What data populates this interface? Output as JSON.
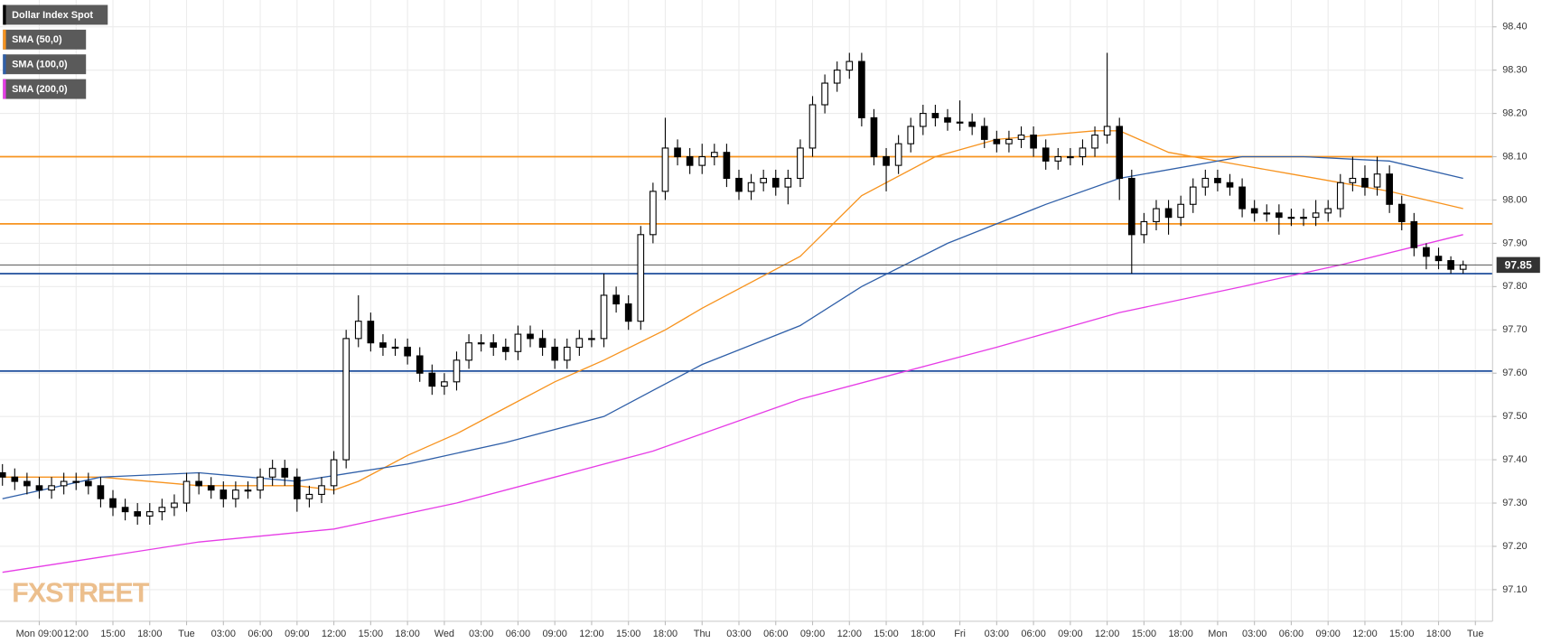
{
  "chart_data": {
    "type": "candlestick",
    "x": [
      6,
      7,
      8,
      9,
      10,
      11,
      12,
      13,
      14,
      15,
      16,
      17,
      18,
      19,
      20,
      21,
      22,
      23,
      24,
      25,
      26,
      27,
      28,
      29,
      30,
      31,
      32,
      33,
      34,
      35,
      36,
      37,
      38,
      39,
      40,
      41,
      42,
      43,
      44,
      45,
      46,
      47,
      48,
      49,
      50,
      51,
      52,
      53,
      54,
      55,
      56,
      57,
      58,
      59,
      60,
      61,
      62,
      63,
      64,
      65,
      66,
      67,
      68,
      69,
      70,
      71,
      72,
      73,
      74,
      75,
      76,
      77,
      78,
      79,
      80,
      81,
      82,
      83,
      84,
      85,
      86,
      87,
      88,
      89,
      90,
      91,
      92,
      93,
      94,
      95,
      96,
      97,
      98,
      99,
      100,
      101,
      102,
      103,
      104,
      105,
      106,
      107,
      108,
      109,
      110,
      111,
      112,
      113,
      114,
      115,
      116,
      117,
      118,
      119,
      120,
      121,
      122,
      123,
      124,
      125
    ],
    "series": [
      {
        "name": "Dollar Index Spot",
        "color": "#000000",
        "open": [
          97.37,
          97.36,
          97.35,
          97.34,
          97.33,
          97.34,
          97.35,
          97.35,
          97.34,
          97.31,
          97.29,
          97.28,
          97.27,
          97.28,
          97.29,
          97.3,
          97.35,
          97.34,
          97.33,
          97.31,
          97.33,
          97.33,
          97.36,
          97.38,
          97.36,
          97.31,
          97.32,
          97.34,
          97.4,
          97.68,
          97.72,
          97.67,
          97.66,
          97.66,
          97.64,
          97.6,
          97.57,
          97.58,
          97.63,
          97.67,
          97.67,
          97.66,
          97.65,
          97.69,
          97.68,
          97.66,
          97.63,
          97.66,
          97.68,
          97.68,
          97.78,
          97.76,
          97.72,
          97.92,
          98.02,
          98.12,
          98.1,
          98.08,
          98.1,
          98.11,
          98.05,
          98.02,
          98.04,
          98.05,
          98.03,
          98.05,
          98.12,
          98.22,
          98.27,
          98.3,
          98.32,
          98.19,
          98.1,
          98.08,
          98.13,
          98.17,
          98.2,
          98.19,
          98.18,
          98.18,
          98.17,
          98.14,
          98.13,
          98.14,
          98.15,
          98.12,
          98.09,
          98.1,
          98.1,
          98.12,
          98.15,
          98.17,
          98.05,
          97.92,
          97.95,
          97.98,
          97.96,
          97.99,
          98.03,
          98.05,
          98.04,
          98.03,
          97.98,
          97.97,
          97.97,
          97.96,
          97.96,
          97.96,
          97.97,
          97.98,
          98.04,
          98.05,
          98.03,
          98.06,
          97.99,
          97.95,
          97.89,
          97.87,
          97.86,
          97.84
        ],
        "high": [
          97.39,
          97.38,
          97.37,
          97.36,
          97.36,
          97.37,
          97.37,
          97.37,
          97.36,
          97.33,
          97.31,
          97.3,
          97.3,
          97.31,
          97.32,
          97.37,
          97.37,
          97.36,
          97.35,
          97.35,
          97.35,
          97.38,
          97.4,
          97.4,
          97.38,
          97.34,
          97.36,
          97.42,
          97.7,
          97.78,
          97.74,
          97.69,
          97.68,
          97.68,
          97.66,
          97.62,
          97.6,
          97.65,
          97.69,
          97.69,
          97.69,
          97.68,
          97.71,
          97.71,
          97.7,
          97.68,
          97.68,
          97.7,
          97.7,
          97.83,
          97.8,
          97.78,
          97.94,
          98.04,
          98.19,
          98.14,
          98.12,
          98.13,
          98.13,
          98.13,
          98.07,
          98.06,
          98.07,
          98.07,
          98.07,
          98.14,
          98.24,
          98.29,
          98.32,
          98.34,
          98.34,
          98.21,
          98.12,
          98.15,
          98.19,
          98.22,
          98.22,
          98.21,
          98.23,
          98.2,
          98.19,
          98.16,
          98.16,
          98.17,
          98.17,
          98.14,
          98.12,
          98.12,
          98.14,
          98.17,
          98.34,
          98.19,
          98.07,
          97.97,
          98.0,
          98.0,
          98.01,
          98.05,
          98.07,
          98.07,
          98.06,
          98.05,
          98.0,
          97.99,
          97.99,
          97.98,
          97.98,
          98.0,
          98.0,
          98.06,
          98.1,
          98.08,
          98.1,
          98.08,
          98.01,
          97.97,
          97.9,
          97.89,
          97.87,
          97.86
        ],
        "low": [
          97.34,
          97.33,
          97.32,
          97.31,
          97.31,
          97.32,
          97.33,
          97.32,
          97.29,
          97.27,
          97.26,
          97.25,
          97.25,
          97.26,
          97.27,
          97.28,
          97.32,
          97.31,
          97.29,
          97.29,
          97.31,
          97.31,
          97.34,
          97.34,
          97.28,
          97.29,
          97.3,
          97.32,
          97.38,
          97.66,
          97.65,
          97.64,
          97.64,
          97.62,
          97.58,
          97.55,
          97.55,
          97.56,
          97.61,
          97.65,
          97.64,
          97.63,
          97.63,
          97.66,
          97.64,
          97.61,
          97.61,
          97.64,
          97.66,
          97.66,
          97.74,
          97.7,
          97.7,
          97.9,
          98.0,
          98.08,
          98.06,
          98.06,
          98.08,
          98.03,
          98.0,
          98.0,
          98.02,
          98.01,
          97.99,
          98.03,
          98.1,
          98.2,
          98.25,
          98.28,
          98.17,
          98.08,
          98.02,
          98.06,
          98.11,
          98.15,
          98.17,
          98.16,
          98.16,
          98.15,
          98.12,
          98.11,
          98.11,
          98.12,
          98.1,
          98.07,
          98.07,
          98.08,
          98.08,
          98.1,
          98.13,
          98.0,
          97.83,
          97.9,
          97.93,
          97.92,
          97.94,
          97.97,
          98.01,
          98.02,
          98.01,
          97.96,
          97.95,
          97.95,
          97.92,
          97.94,
          97.94,
          97.94,
          97.95,
          97.96,
          98.02,
          98.01,
          98.01,
          97.97,
          97.93,
          97.87,
          97.84,
          97.84,
          97.83,
          97.83
        ],
        "close": [
          97.36,
          97.35,
          97.34,
          97.33,
          97.34,
          97.35,
          97.35,
          97.34,
          97.31,
          97.29,
          97.28,
          97.27,
          97.28,
          97.29,
          97.3,
          97.35,
          97.34,
          97.33,
          97.31,
          97.33,
          97.33,
          97.36,
          97.38,
          97.36,
          97.31,
          97.32,
          97.34,
          97.4,
          97.68,
          97.72,
          97.67,
          97.66,
          97.66,
          97.64,
          97.6,
          97.57,
          97.58,
          97.63,
          97.67,
          97.67,
          97.66,
          97.65,
          97.69,
          97.68,
          97.66,
          97.63,
          97.66,
          97.68,
          97.68,
          97.78,
          97.76,
          97.72,
          97.92,
          98.02,
          98.12,
          98.1,
          98.08,
          98.1,
          98.11,
          98.05,
          98.02,
          98.04,
          98.05,
          98.03,
          98.05,
          98.12,
          98.22,
          98.27,
          98.3,
          98.32,
          98.19,
          98.1,
          98.08,
          98.13,
          98.17,
          98.2,
          98.19,
          98.18,
          98.18,
          98.17,
          98.14,
          98.13,
          98.14,
          98.15,
          98.12,
          98.09,
          98.1,
          98.1,
          98.12,
          98.15,
          98.17,
          98.05,
          97.92,
          97.95,
          97.98,
          97.96,
          97.99,
          98.03,
          98.05,
          98.04,
          98.03,
          97.98,
          97.97,
          97.97,
          97.96,
          97.96,
          97.96,
          97.97,
          97.98,
          98.04,
          98.05,
          98.03,
          98.06,
          97.99,
          97.95,
          97.89,
          97.87,
          97.86,
          97.84,
          97.85
        ]
      }
    ],
    "lines": [
      {
        "name": "SMA (50,0)",
        "color": "#f7931e",
        "x": [
          6,
          14,
          22,
          30,
          33,
          35,
          39,
          43,
          47,
          51,
          55,
          60,
          63,
          71,
          76,
          82,
          87,
          95,
          97,
          101,
          107,
          111,
          119,
          125
        ],
        "values": [
          97.36,
          97.36,
          97.34,
          97.34,
          97.33,
          97.35,
          97.41,
          97.46,
          97.52,
          97.58,
          97.63,
          97.7,
          97.75,
          97.87,
          98.01,
          98.1,
          98.14,
          98.16,
          98.16,
          98.11,
          98.08,
          98.06,
          98.02,
          97.98
        ]
      },
      {
        "name": "SMA (100,0)",
        "color": "#2f5fa8",
        "x": [
          6,
          14,
          22,
          30,
          39,
          47,
          55,
          59,
          63,
          71,
          76,
          83,
          91,
          97,
          107,
          112,
          119,
          125
        ],
        "values": [
          97.31,
          97.36,
          97.37,
          97.35,
          97.39,
          97.44,
          97.5,
          97.56,
          97.62,
          97.71,
          97.8,
          97.9,
          97.99,
          98.05,
          98.1,
          98.1,
          98.09,
          98.05
        ]
      },
      {
        "name": "SMA (200,0)",
        "color": "#e63ce6",
        "x": [
          6,
          14,
          22,
          33,
          43,
          51,
          59,
          65,
          71,
          79,
          87,
          97,
          107,
          115,
          125
        ],
        "values": [
          97.14,
          97.175,
          97.21,
          97.24,
          97.3,
          97.36,
          97.42,
          97.48,
          97.54,
          97.6,
          97.66,
          97.74,
          97.8,
          97.85,
          97.92
        ]
      }
    ],
    "levels": [
      {
        "value": 98.1,
        "color": "#f7931e"
      },
      {
        "value": 97.945,
        "color": "#f7931e"
      },
      {
        "value": 97.83,
        "color": "#1f4e9c"
      },
      {
        "value": 97.605,
        "color": "#1f4e9c"
      }
    ],
    "last_price": 97.85,
    "xlim": [
      5.8,
      127.4
    ],
    "ylim": [
      97.027,
      98.462
    ],
    "xticks": [
      {
        "value": 9,
        "label": "Mon 09:00"
      },
      {
        "value": 12,
        "label": "12:00"
      },
      {
        "value": 15,
        "label": "15:00"
      },
      {
        "value": 18,
        "label": "18:00"
      },
      {
        "value": 21,
        "label": "Tue"
      },
      {
        "value": 24,
        "label": "03:00"
      },
      {
        "value": 27,
        "label": "06:00"
      },
      {
        "value": 30,
        "label": "09:00"
      },
      {
        "value": 33,
        "label": "12:00"
      },
      {
        "value": 36,
        "label": "15:00"
      },
      {
        "value": 39,
        "label": "18:00"
      },
      {
        "value": 42,
        "label": "Wed"
      },
      {
        "value": 45,
        "label": "03:00"
      },
      {
        "value": 48,
        "label": "06:00"
      },
      {
        "value": 51,
        "label": "09:00"
      },
      {
        "value": 54,
        "label": "12:00"
      },
      {
        "value": 57,
        "label": "15:00"
      },
      {
        "value": 60,
        "label": "18:00"
      },
      {
        "value": 63,
        "label": "Thu"
      },
      {
        "value": 66,
        "label": "03:00"
      },
      {
        "value": 69,
        "label": "06:00"
      },
      {
        "value": 72,
        "label": "09:00"
      },
      {
        "value": 75,
        "label": "12:00"
      },
      {
        "value": 78,
        "label": "15:00"
      },
      {
        "value": 81,
        "label": "18:00"
      },
      {
        "value": 84,
        "label": "Fri"
      },
      {
        "value": 87,
        "label": "03:00"
      },
      {
        "value": 90,
        "label": "06:00"
      },
      {
        "value": 93,
        "label": "09:00"
      },
      {
        "value": 96,
        "label": "12:00"
      },
      {
        "value": 99,
        "label": "15:00"
      },
      {
        "value": 102,
        "label": "18:00"
      },
      {
        "value": 105,
        "label": "Mon"
      },
      {
        "value": 108,
        "label": "03:00"
      },
      {
        "value": 111,
        "label": "06:00"
      },
      {
        "value": 114,
        "label": "09:00"
      },
      {
        "value": 117,
        "label": "12:00"
      },
      {
        "value": 120,
        "label": "15:00"
      },
      {
        "value": 123,
        "label": "18:00"
      },
      {
        "value": 126,
        "label": "Tue"
      }
    ],
    "yticks": [
      {
        "value": 97.1,
        "label": "97.10"
      },
      {
        "value": 97.2,
        "label": "97.20"
      },
      {
        "value": 97.3,
        "label": "97.30"
      },
      {
        "value": 97.4,
        "label": "97.40"
      },
      {
        "value": 97.5,
        "label": "97.50"
      },
      {
        "value": 97.6,
        "label": "97.60"
      },
      {
        "value": 97.7,
        "label": "97.70"
      },
      {
        "value": 97.8,
        "label": "97.80"
      },
      {
        "value": 97.9,
        "label": "97.90"
      },
      {
        "value": 98.0,
        "label": "98.00"
      },
      {
        "value": 98.1,
        "label": "98.10"
      },
      {
        "value": 98.2,
        "label": "98.20"
      },
      {
        "value": 98.3,
        "label": "98.30"
      },
      {
        "value": 98.4,
        "label": "98.40"
      }
    ],
    "grid": true,
    "watermark": "FXSTREET"
  }
}
